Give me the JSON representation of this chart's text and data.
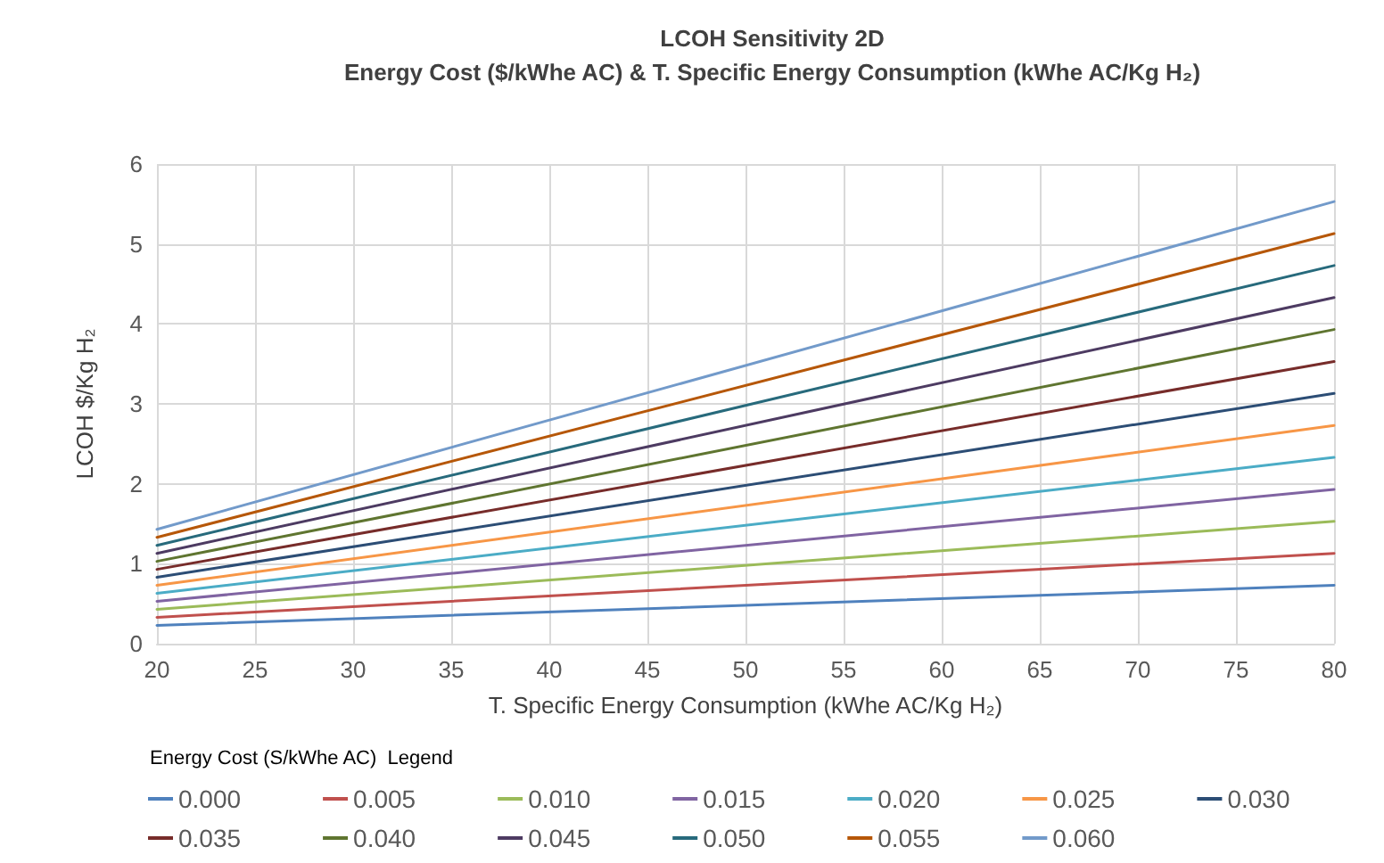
{
  "chart_data": {
    "type": "line",
    "title": "LCOH Sensitivity 2D",
    "subtitle": "Energy Cost ($/kWhe AC) & T. Specific Energy Consumption (kWhe AC/Kg H₂)",
    "xlabel": "T. Specific Energy Consumption (kWhe AC/Kg H₂)",
    "ylabel": "LCOH $/Kg H₂",
    "legend_title": "Energy Cost (S/kWhe AC)  Legend",
    "x": [
      20,
      80
    ],
    "series": [
      {
        "name": "0.000",
        "color": "#4f81bd",
        "values": [
          0.23,
          0.73
        ]
      },
      {
        "name": "0.005",
        "color": "#c0504d",
        "values": [
          0.33,
          1.13
        ]
      },
      {
        "name": "0.010",
        "color": "#9bbb59",
        "values": [
          0.43,
          1.53
        ]
      },
      {
        "name": "0.015",
        "color": "#8064a2",
        "values": [
          0.53,
          1.93
        ]
      },
      {
        "name": "0.020",
        "color": "#4bacc6",
        "values": [
          0.63,
          2.33
        ]
      },
      {
        "name": "0.025",
        "color": "#f79646",
        "values": [
          0.73,
          2.73
        ]
      },
      {
        "name": "0.030",
        "color": "#2c4d75",
        "values": [
          0.83,
          3.13
        ]
      },
      {
        "name": "0.035",
        "color": "#772c2a",
        "values": [
          0.93,
          3.53
        ]
      },
      {
        "name": "0.040",
        "color": "#5f7530",
        "values": [
          1.03,
          3.93
        ]
      },
      {
        "name": "0.045",
        "color": "#4d3b62",
        "values": [
          1.13,
          4.33
        ]
      },
      {
        "name": "0.050",
        "color": "#276a7c",
        "values": [
          1.23,
          4.73
        ]
      },
      {
        "name": "0.055",
        "color": "#b65708",
        "values": [
          1.33,
          5.13
        ]
      },
      {
        "name": "0.060",
        "color": "#729aca",
        "values": [
          1.43,
          5.53
        ]
      }
    ],
    "xlim": [
      20,
      80
    ],
    "xticks": [
      20,
      25,
      30,
      35,
      40,
      45,
      50,
      55,
      60,
      65,
      70,
      75,
      80
    ],
    "ylim": [
      0,
      6
    ],
    "yticks": [
      0,
      1,
      2,
      3,
      4,
      5,
      6
    ],
    "grid": true,
    "legend": "bottom",
    "marker": "none",
    "line_style": "solid"
  }
}
